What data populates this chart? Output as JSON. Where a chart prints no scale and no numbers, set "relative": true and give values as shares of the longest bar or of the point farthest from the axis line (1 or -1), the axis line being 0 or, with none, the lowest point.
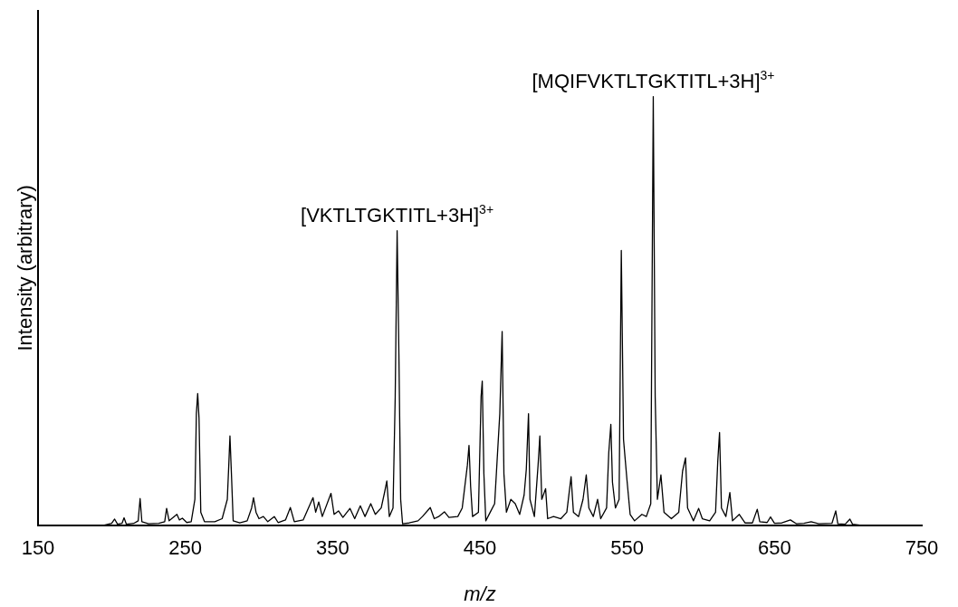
{
  "chart_data": {
    "type": "line",
    "xlabel": "m/z",
    "ylabel": "Intensity (arbitrary)",
    "relative": true,
    "xlim": [
      150,
      750
    ],
    "xticks": [
      150,
      250,
      350,
      450,
      550,
      650,
      750
    ],
    "grid": false,
    "legend": false,
    "marker": "none",
    "line_style": "solid",
    "annotations": [
      {
        "text": "[VKTLTGKTITL+3H]$^{3+}$",
        "x": 393.8,
        "y": 0.687
      },
      {
        "text": "[MQIFVKTLTGKTITL+3H]$^{3+}$",
        "x": 567.7,
        "y": 1
      }
    ],
    "series": [
      {
        "color": "#000000",
        "x": [
          150,
          195,
          200,
          202,
          204,
          207,
          208.4,
          210,
          215,
          218,
          219.3,
          220.5,
          225,
          232,
          236,
          237.3,
          239,
          244.3,
          246,
          248,
          251,
          254,
          256.5,
          257.5,
          258.4,
          259.3,
          260.5,
          263,
          270,
          275,
          278.5,
          279.5,
          280.3,
          281.3,
          282.5,
          287,
          292,
          295,
          296.3,
          298,
          300,
          303,
          306,
          310.4,
          313,
          318,
          321.3,
          324,
          330,
          336.7,
          338.5,
          340.6,
          343,
          348.9,
          351,
          354,
          357,
          361.8,
          365,
          368.8,
          372,
          375.9,
          379,
          383,
          385.5,
          386.8,
          388.5,
          391,
          392.5,
          393.8,
          395,
          396.2,
          397.5,
          402,
          408,
          411,
          416.3,
          419,
          422,
          425.9,
          429,
          435,
          438,
          441.5,
          442.6,
          443.7,
          445,
          449,
          450.8,
          451.6,
          452.7,
          454,
          457,
          460,
          463.5,
          465.1,
          466.3,
          468,
          471,
          474,
          477,
          480,
          481.5,
          483,
          484,
          487,
          489.5,
          490.7,
          492,
          494.6,
          496,
          500,
          505,
          509,
          511.9,
          513.5,
          517,
          520,
          522.2,
          524,
          527,
          529.9,
          532,
          536,
          537.5,
          538.9,
          540,
          542,
          544.5,
          546,
          547.5,
          549.8,
          552,
          555,
          560,
          563,
          566,
          567.7,
          569,
          570.5,
          572.9,
          575,
          580,
          585,
          587.6,
          589.6,
          591,
          595,
          598.5,
          601,
          606,
          610,
          611.5,
          612.7,
          614,
          617,
          619.7,
          621.5,
          626.1,
          630,
          635,
          638.3,
          640,
          645,
          647.3,
          650,
          655,
          660.8,
          665,
          670,
          674.9,
          680,
          689,
          691.6,
          693,
          698,
          701.2,
          703,
          708
        ],
        "values": [
          0,
          0,
          0.004,
          0.014,
          0.002,
          0.004,
          0.017,
          0.002,
          0.004,
          0.01,
          0.062,
          0.008,
          0.003,
          0.004,
          0.008,
          0.039,
          0.01,
          0.025,
          0.012,
          0.016,
          0.006,
          0.008,
          0.06,
          0.26,
          0.307,
          0.25,
          0.03,
          0.008,
          0.008,
          0.015,
          0.06,
          0.14,
          0.208,
          0.12,
          0.01,
          0.005,
          0.01,
          0.04,
          0.064,
          0.03,
          0.015,
          0.02,
          0.008,
          0.02,
          0.006,
          0.012,
          0.041,
          0.008,
          0.012,
          0.064,
          0.03,
          0.054,
          0.02,
          0.074,
          0.025,
          0.033,
          0.018,
          0.039,
          0.015,
          0.045,
          0.02,
          0.05,
          0.025,
          0.04,
          0.08,
          0.103,
          0.02,
          0.04,
          0.3,
          0.687,
          0.4,
          0.06,
          0.003,
          0.005,
          0.01,
          0.02,
          0.041,
          0.015,
          0.02,
          0.031,
          0.018,
          0.02,
          0.04,
          0.14,
          0.186,
          0.09,
          0.02,
          0.03,
          0.3,
          0.336,
          0.12,
          0.01,
          0.03,
          0.05,
          0.26,
          0.452,
          0.12,
          0.03,
          0.06,
          0.05,
          0.025,
          0.07,
          0.13,
          0.26,
          0.06,
          0.02,
          0.14,
          0.208,
          0.06,
          0.085,
          0.015,
          0.02,
          0.015,
          0.03,
          0.113,
          0.03,
          0.02,
          0.06,
          0.117,
          0.04,
          0.02,
          0.06,
          0.015,
          0.04,
          0.17,
          0.235,
          0.1,
          0.04,
          0.06,
          0.641,
          0.2,
          0.107,
          0.025,
          0.01,
          0.025,
          0.02,
          0.05,
          1,
          0.3,
          0.06,
          0.117,
          0.03,
          0.015,
          0.03,
          0.126,
          0.157,
          0.04,
          0.01,
          0.039,
          0.015,
          0.01,
          0.03,
          0.15,
          0.216,
          0.04,
          0.02,
          0.076,
          0.01,
          0.025,
          0.005,
          0.005,
          0.037,
          0.008,
          0.006,
          0.019,
          0.004,
          0.005,
          0.012,
          0.003,
          0.004,
          0.008,
          0.003,
          0.004,
          0.033,
          0.003,
          0.002,
          0.014,
          0.002,
          0
        ]
      }
    ]
  }
}
